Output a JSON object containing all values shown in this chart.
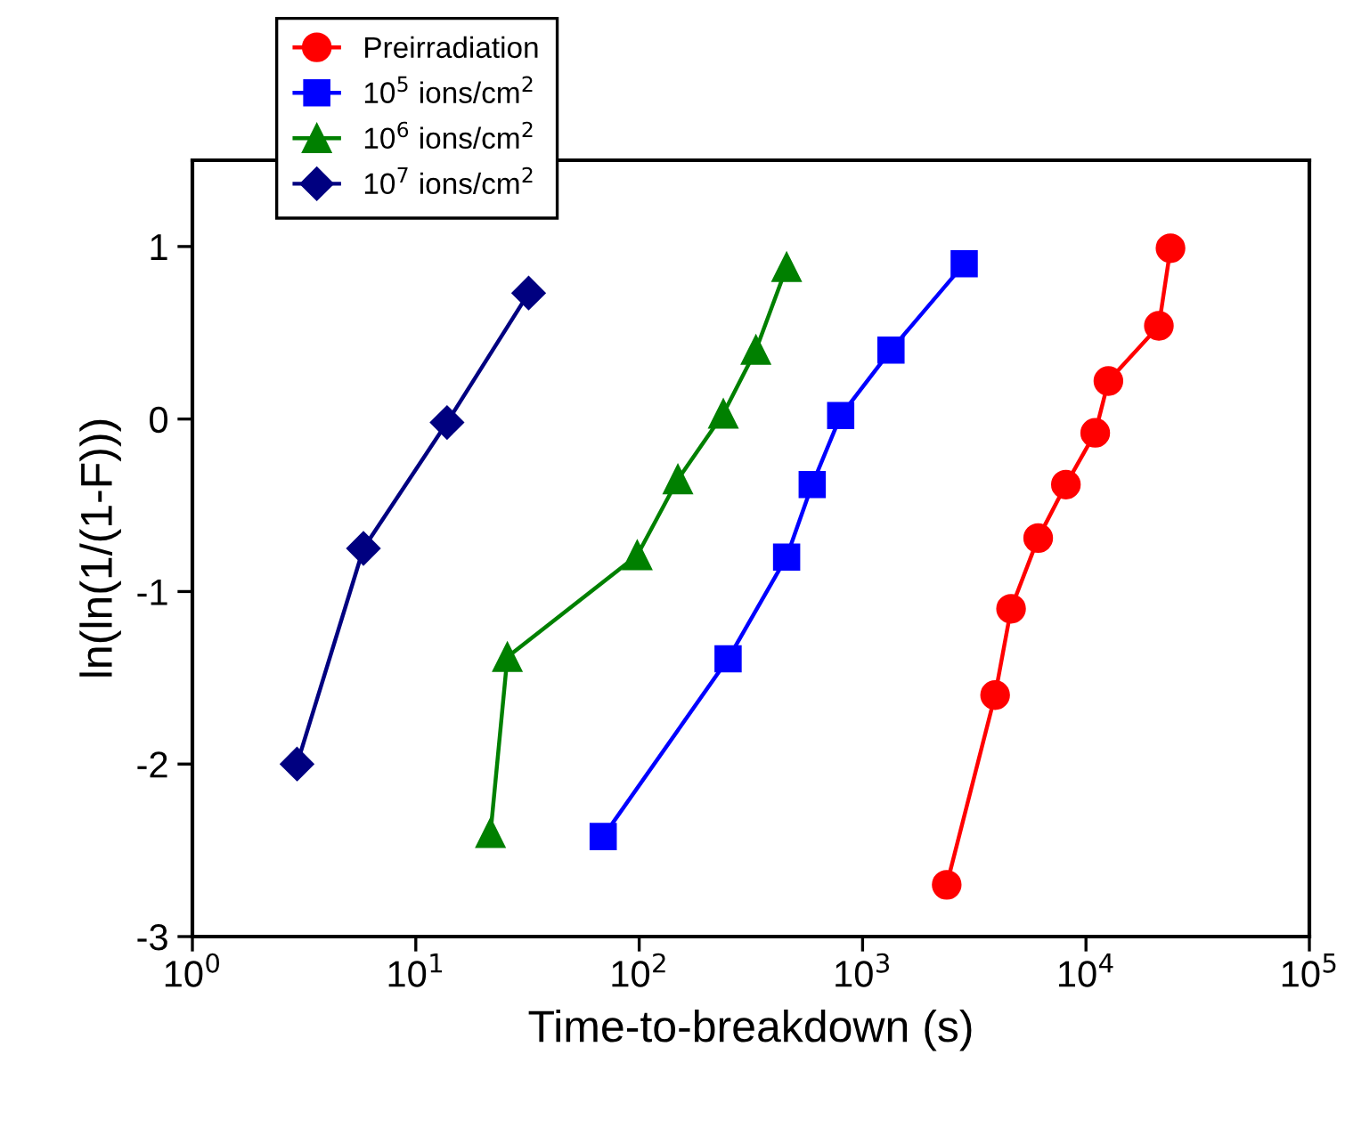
{
  "chart_data": {
    "type": "line",
    "xlabel": "Time-to-breakdown (s)",
    "ylabel": "ln(ln(1/(1-F)))",
    "log": "x",
    "xlim": [
      1,
      100000
    ],
    "ylim": [
      -3,
      1.5
    ],
    "xticks": [
      {
        "value": 1,
        "label": "10$^{0}$"
      },
      {
        "value": 10,
        "label": "10$^{1}$"
      },
      {
        "value": 100,
        "label": "10$^{2}$"
      },
      {
        "value": 1000,
        "label": "10$^{3}$"
      },
      {
        "value": 10000,
        "label": "10$^{4}$"
      },
      {
        "value": 100000,
        "label": "10$^{5}$"
      }
    ],
    "yticks": [
      -3,
      -2,
      -1,
      0,
      1
    ],
    "grid": false,
    "legend": "top left",
    "line_style": "solid",
    "series": [
      {
        "name": "Preirradiation",
        "color": "#ff0000",
        "marker": "circle",
        "x": [
          2380,
          3920,
          4620,
          6110,
          8130,
          11000,
          12600,
          21200,
          23900
        ],
        "values": [
          -2.7,
          -1.6,
          -1.1,
          -0.69,
          -0.38,
          -0.08,
          0.22,
          0.54,
          0.99
        ]
      },
      {
        "name": "10$^{5}$ ions/cm$^{2}$",
        "color": "#0000ff",
        "marker": "square",
        "x": [
          69,
          250,
          457,
          595,
          798,
          1340,
          2850
        ],
        "values": [
          -2.42,
          -1.39,
          -0.8,
          -0.38,
          0.02,
          0.4,
          0.9
        ]
      },
      {
        "name": "10$^{6}$ ions/cm$^{2}$",
        "color": "#008000",
        "marker": "triangle",
        "x": [
          21.6,
          25.7,
          98,
          149,
          238,
          333,
          457
        ],
        "values": [
          -2.4,
          -1.38,
          -0.79,
          -0.35,
          0.03,
          0.4,
          0.88
        ]
      },
      {
        "name": "10$^{7}$ ions/cm$^{2}$",
        "color": "#000080",
        "marker": "diamond",
        "x": [
          2.94,
          5.83,
          13.8,
          32
        ],
        "values": [
          -2.0,
          -0.75,
          -0.02,
          0.73
        ]
      }
    ]
  }
}
